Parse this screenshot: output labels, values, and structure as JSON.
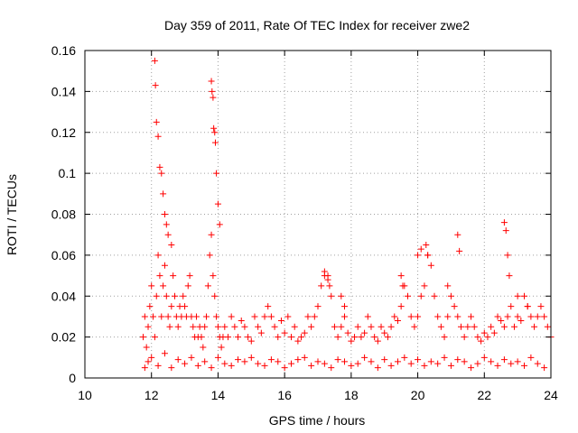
{
  "chart_data": {
    "type": "scatter",
    "title": "Day 359 of 2011, Rate Of TEC Index for receiver zwe2",
    "xlabel": "GPS time / hours",
    "ylabel": "ROTI / TECUs",
    "xlim": [
      10,
      24
    ],
    "ylim": [
      0,
      0.16
    ],
    "xticks": [
      10,
      12,
      14,
      16,
      18,
      20,
      22,
      24
    ],
    "xtick_labels": [
      "10",
      "12",
      "14",
      "16",
      "18",
      "20",
      "22",
      "24"
    ],
    "yticks": [
      0,
      0.02,
      0.04,
      0.06,
      0.08,
      0.1,
      0.12,
      0.14,
      0.16
    ],
    "ytick_labels": [
      "0",
      "0.02",
      "0.04",
      "0.06",
      "0.08",
      "0.1",
      "0.12",
      "0.14",
      "0.16"
    ],
    "grid": true,
    "marker": "+",
    "series": [
      {
        "name": "ROTI",
        "color": "#ff0000",
        "x": [
          11.75,
          11.8,
          11.85,
          11.9,
          11.95,
          12.0,
          12.05,
          12.1,
          12.15,
          12.2,
          12.25,
          12.3,
          12.35,
          12.4,
          12.45,
          12.5,
          12.55,
          12.6,
          12.65,
          12.7,
          12.75,
          12.8,
          12.85,
          12.9,
          12.95,
          13.0,
          13.05,
          13.1,
          13.15,
          13.2,
          13.25,
          13.3,
          13.35,
          13.4,
          13.45,
          13.5,
          13.55,
          13.6,
          13.65,
          13.7,
          13.75,
          13.8,
          13.85,
          13.9,
          13.95,
          14.0,
          14.05,
          14.1,
          14.15,
          14.2,
          14.3,
          14.4,
          14.5,
          14.6,
          14.7,
          14.8,
          14.9,
          15.0,
          15.1,
          15.2,
          15.3,
          15.4,
          15.5,
          15.6,
          15.7,
          15.8,
          15.9,
          16.0,
          16.1,
          16.2,
          16.3,
          16.4,
          16.5,
          16.6,
          16.7,
          16.8,
          16.9,
          17.0,
          17.1,
          17.2,
          17.3,
          17.4,
          17.5,
          17.6,
          17.7,
          17.8,
          17.9,
          18.0,
          18.1,
          18.2,
          18.3,
          18.4,
          18.5,
          18.6,
          18.7,
          18.8,
          18.9,
          19.0,
          19.1,
          19.2,
          19.3,
          19.4,
          19.5,
          19.6,
          19.7,
          19.8,
          19.9,
          20.0,
          20.1,
          20.2,
          20.3,
          20.4,
          20.5,
          20.6,
          20.7,
          20.8,
          20.9,
          21.0,
          21.1,
          21.2,
          21.3,
          21.4,
          21.5,
          21.6,
          21.7,
          21.8,
          21.9,
          22.0,
          22.1,
          22.2,
          22.3,
          22.4,
          22.5,
          22.6,
          22.7,
          22.8,
          22.9,
          23.0,
          23.1,
          23.2,
          23.3,
          23.4,
          23.5,
          23.6,
          23.7,
          23.8,
          23.9,
          24.0,
          12.1,
          12.12,
          12.15,
          12.2,
          12.25,
          12.3,
          12.35,
          12.4,
          12.45,
          12.5,
          12.6,
          13.8,
          13.82,
          13.85,
          13.87,
          13.9,
          13.92,
          13.95,
          14.0,
          14.05,
          11.8,
          11.9,
          12.0,
          12.2,
          12.4,
          12.6,
          12.8,
          13.0,
          13.2,
          13.4,
          13.6,
          13.8,
          14.0,
          14.2,
          14.4,
          14.6,
          14.8,
          15.0,
          15.2,
          15.4,
          15.6,
          15.8,
          16.0,
          16.2,
          16.4,
          16.6,
          16.8,
          17.0,
          17.2,
          17.4,
          17.6,
          17.8,
          18.0,
          18.2,
          18.4,
          18.6,
          18.8,
          19.0,
          19.2,
          19.4,
          19.6,
          19.8,
          20.0,
          20.2,
          20.4,
          20.6,
          20.8,
          21.0,
          21.2,
          21.4,
          21.6,
          21.8,
          22.0,
          22.2,
          22.4,
          22.6,
          22.8,
          23.0,
          23.2,
          23.4,
          23.6,
          23.8,
          17.2,
          17.3,
          17.35,
          17.7,
          17.8,
          19.5,
          19.55,
          20.0,
          20.1,
          20.25,
          20.3,
          20.9,
          21.2,
          21.25,
          22.6,
          22.65,
          22.7,
          22.75,
          23.0,
          23.3
        ],
        "y": [
          0.02,
          0.03,
          0.015,
          0.025,
          0.035,
          0.045,
          0.03,
          0.02,
          0.04,
          0.06,
          0.05,
          0.03,
          0.045,
          0.055,
          0.04,
          0.03,
          0.025,
          0.035,
          0.05,
          0.04,
          0.03,
          0.025,
          0.035,
          0.03,
          0.04,
          0.035,
          0.03,
          0.045,
          0.05,
          0.03,
          0.025,
          0.02,
          0.03,
          0.02,
          0.025,
          0.02,
          0.015,
          0.025,
          0.03,
          0.045,
          0.06,
          0.07,
          0.05,
          0.04,
          0.03,
          0.025,
          0.02,
          0.015,
          0.02,
          0.025,
          0.02,
          0.03,
          0.025,
          0.02,
          0.028,
          0.025,
          0.02,
          0.018,
          0.03,
          0.025,
          0.022,
          0.03,
          0.035,
          0.03,
          0.025,
          0.02,
          0.028,
          0.022,
          0.03,
          0.02,
          0.025,
          0.018,
          0.02,
          0.022,
          0.03,
          0.025,
          0.03,
          0.035,
          0.045,
          0.05,
          0.048,
          0.04,
          0.025,
          0.02,
          0.025,
          0.03,
          0.022,
          0.018,
          0.02,
          0.025,
          0.02,
          0.022,
          0.03,
          0.025,
          0.02,
          0.018,
          0.025,
          0.022,
          0.02,
          0.025,
          0.03,
          0.028,
          0.035,
          0.045,
          0.04,
          0.03,
          0.025,
          0.03,
          0.04,
          0.045,
          0.06,
          0.055,
          0.04,
          0.03,
          0.025,
          0.02,
          0.03,
          0.04,
          0.035,
          0.03,
          0.025,
          0.02,
          0.025,
          0.03,
          0.025,
          0.02,
          0.018,
          0.022,
          0.02,
          0.025,
          0.022,
          0.03,
          0.028,
          0.025,
          0.03,
          0.035,
          0.025,
          0.03,
          0.028,
          0.04,
          0.035,
          0.03,
          0.025,
          0.03,
          0.035,
          0.03,
          0.025,
          0.02,
          0.155,
          0.143,
          0.125,
          0.118,
          0.103,
          0.1,
          0.09,
          0.08,
          0.075,
          0.07,
          0.065,
          0.145,
          0.14,
          0.137,
          0.122,
          0.12,
          0.115,
          0.1,
          0.085,
          0.075,
          0.005,
          0.008,
          0.01,
          0.006,
          0.012,
          0.005,
          0.009,
          0.007,
          0.01,
          0.006,
          0.008,
          0.005,
          0.01,
          0.007,
          0.006,
          0.009,
          0.008,
          0.01,
          0.007,
          0.006,
          0.009,
          0.008,
          0.005,
          0.007,
          0.009,
          0.01,
          0.006,
          0.008,
          0.007,
          0.005,
          0.009,
          0.008,
          0.006,
          0.007,
          0.01,
          0.008,
          0.005,
          0.009,
          0.006,
          0.008,
          0.01,
          0.007,
          0.009,
          0.006,
          0.008,
          0.007,
          0.01,
          0.006,
          0.009,
          0.008,
          0.005,
          0.007,
          0.01,
          0.008,
          0.006,
          0.009,
          0.007,
          0.008,
          0.006,
          0.01,
          0.007,
          0.005,
          0.052,
          0.05,
          0.045,
          0.04,
          0.035,
          0.05,
          0.045,
          0.06,
          0.063,
          0.065,
          0.06,
          0.045,
          0.07,
          0.062,
          0.076,
          0.072,
          0.06,
          0.05,
          0.04,
          0.035
        ]
      }
    ]
  }
}
